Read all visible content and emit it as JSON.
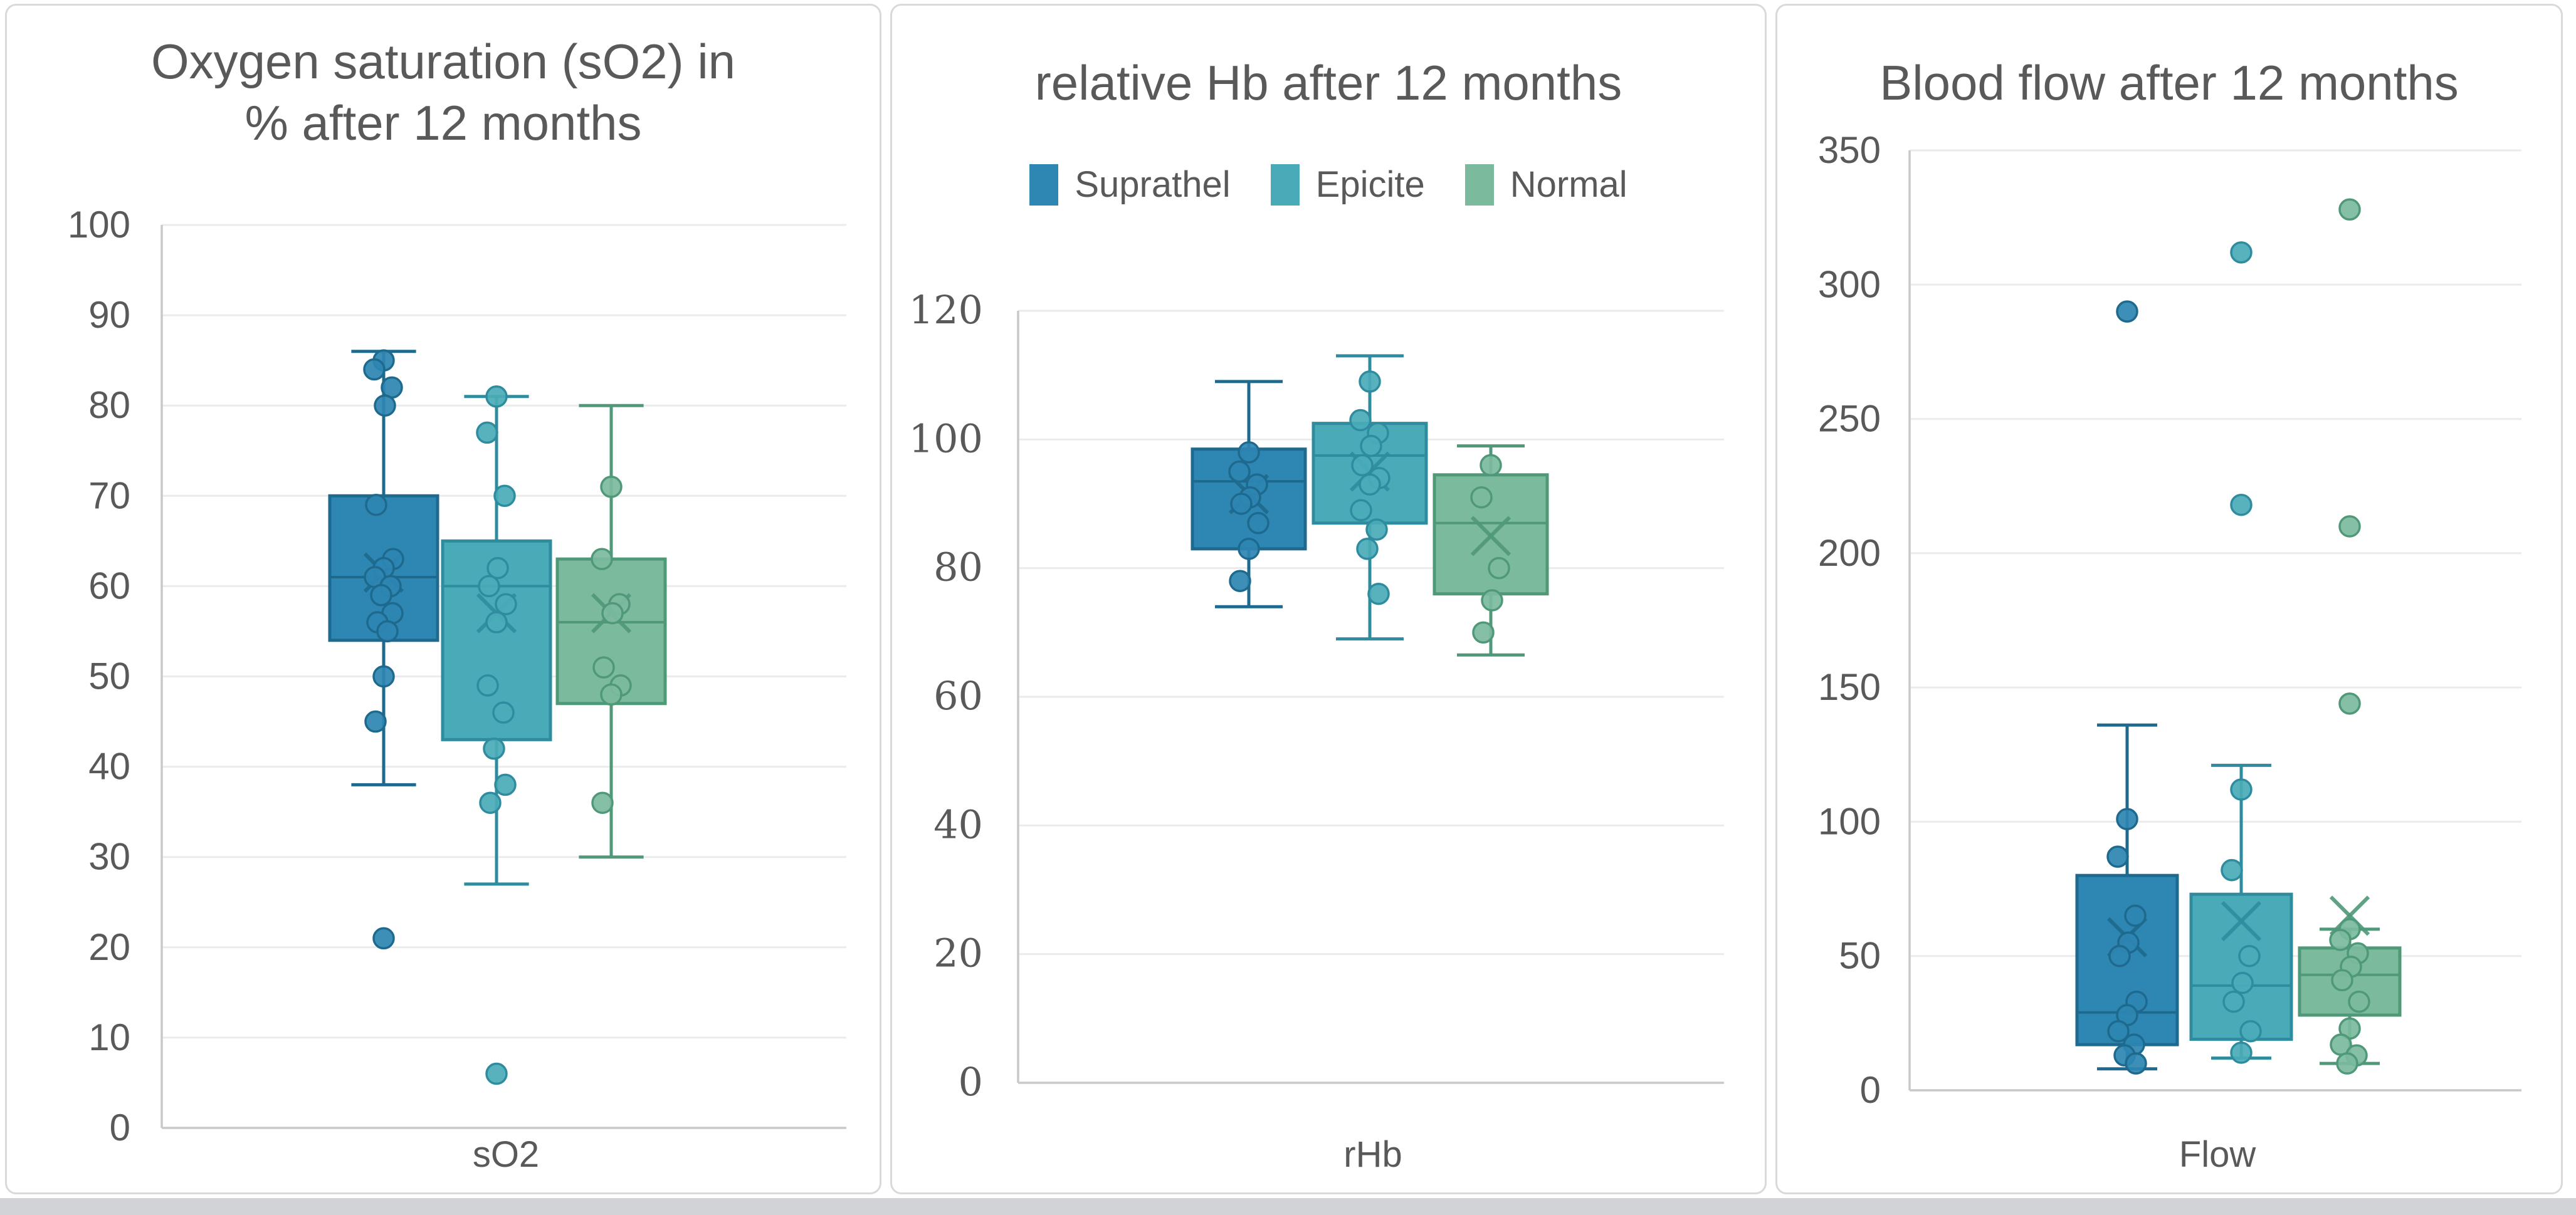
{
  "colors": {
    "panel_border": "#d9d9d9",
    "grid_line": "#ebebeb",
    "axis_line": "#c9c9c9",
    "text": "#595959",
    "background": "#ffffff",
    "window_strip": "#d2d3d6",
    "suprathel_fill": "#2E86B2",
    "suprathel_stroke": "#1E6A8E",
    "epicite_fill": "#4AABB8",
    "epicite_stroke": "#2E8C9E",
    "normal_fill": "#7BBA9D",
    "normal_stroke": "#4F9878"
  },
  "legend": {
    "items": [
      {
        "label": "Suprathel",
        "color": "#2E86B2"
      },
      {
        "label": "Epicite",
        "color": "#4AABB8"
      },
      {
        "label": "Normal",
        "color": "#7BBA9D"
      }
    ]
  },
  "chart_data": [
    {
      "type": "box",
      "title": "Oxygen saturation (sO2) in % after 12 months",
      "title_lines": [
        "Oxygen saturation (sO2) in",
        "% after 12 months"
      ],
      "xlabel": "sO2",
      "ylabel": "",
      "ylim": [
        0,
        100
      ],
      "ytick_step": 10,
      "yticks": [
        0,
        10,
        20,
        30,
        40,
        50,
        60,
        70,
        80,
        90,
        100
      ],
      "grid": true,
      "legend_position": "none",
      "categories": [
        "sO2"
      ],
      "series": [
        {
          "name": "Suprathel",
          "fill": "#2E86B2",
          "stroke": "#1E6A8E",
          "box": {
            "whisker_low": 38,
            "q1": 54,
            "median": 61,
            "q3": 70,
            "whisker_high": 86,
            "mean": 61.5
          },
          "points": [
            85,
            84,
            82,
            80,
            69,
            63,
            62,
            61,
            60,
            59,
            57,
            56,
            55,
            50,
            45
          ],
          "outliers": [
            21
          ]
        },
        {
          "name": "Epicite",
          "fill": "#4AABB8",
          "stroke": "#2E8C9E",
          "box": {
            "whisker_low": 27,
            "q1": 43,
            "median": 60,
            "q3": 65,
            "whisker_high": 81,
            "mean": 57
          },
          "points": [
            81,
            77,
            70,
            62,
            60,
            58,
            56,
            49,
            46,
            42,
            38,
            36
          ],
          "outliers": [
            6
          ]
        },
        {
          "name": "Normal",
          "fill": "#7BBA9D",
          "stroke": "#4F9878",
          "box": {
            "whisker_low": 30,
            "q1": 47,
            "median": 56,
            "q3": 63,
            "whisker_high": 80,
            "mean": 57
          },
          "points": [
            71,
            63,
            58,
            57,
            51,
            49,
            48,
            36
          ],
          "outliers": []
        }
      ]
    },
    {
      "type": "box",
      "title": "relative Hb after 12 months",
      "title_lines": [
        "relative Hb after 12 months"
      ],
      "xlabel": "rHb",
      "ylabel": "",
      "ylim": [
        0,
        120
      ],
      "ytick_step": 20,
      "yticks": [
        0,
        20,
        40,
        60,
        80,
        100,
        120
      ],
      "grid": true,
      "legend_position": "top",
      "categories": [
        "rHb"
      ],
      "series": [
        {
          "name": "Suprathel",
          "fill": "#2E86B2",
          "stroke": "#1E6A8E",
          "box": {
            "whisker_low": 74,
            "q1": 83,
            "median": 93.5,
            "q3": 98.5,
            "whisker_high": 109,
            "mean": 91.5
          },
          "points": [
            98,
            95,
            93,
            91,
            90,
            87,
            83,
            78
          ],
          "outliers": []
        },
        {
          "name": "Epicite",
          "fill": "#4AABB8",
          "stroke": "#2E8C9E",
          "box": {
            "whisker_low": 69,
            "q1": 87,
            "median": 97.5,
            "q3": 102.5,
            "whisker_high": 113,
            "mean": 95
          },
          "points": [
            109,
            103,
            101,
            99,
            96,
            94,
            93,
            89,
            86,
            83,
            76
          ],
          "outliers": []
        },
        {
          "name": "Normal",
          "fill": "#7BBA9D",
          "stroke": "#4F9878",
          "box": {
            "whisker_low": 66.5,
            "q1": 76,
            "median": 87,
            "q3": 94.5,
            "whisker_high": 99,
            "mean": 85
          },
          "points": [
            96,
            91,
            80,
            75,
            70
          ],
          "outliers": []
        }
      ]
    },
    {
      "type": "box",
      "title": "Blood flow after 12 months",
      "title_lines": [
        "Blood flow after 12 months"
      ],
      "xlabel": "Flow",
      "ylabel": "",
      "ylim": [
        0,
        350
      ],
      "ytick_step": 50,
      "yticks": [
        0,
        50,
        100,
        150,
        200,
        250,
        300,
        350
      ],
      "grid": true,
      "legend_position": "none",
      "categories": [
        "Flow"
      ],
      "series": [
        {
          "name": "Suprathel",
          "fill": "#2E86B2",
          "stroke": "#1E6A8E",
          "box": {
            "whisker_low": 8,
            "q1": 17,
            "median": 29,
            "q3": 80,
            "whisker_high": 136,
            "mean": 57
          },
          "points": [
            101,
            87,
            65,
            55,
            50,
            33,
            28,
            22,
            17,
            13,
            10
          ],
          "outliers": [
            290
          ]
        },
        {
          "name": "Epicite",
          "fill": "#4AABB8",
          "stroke": "#2E8C9E",
          "box": {
            "whisker_low": 12,
            "q1": 19,
            "median": 39,
            "q3": 73,
            "whisker_high": 121,
            "mean": 63
          },
          "points": [
            112,
            82,
            50,
            40,
            33,
            22,
            14
          ],
          "outliers": [
            312,
            218
          ]
        },
        {
          "name": "Normal",
          "fill": "#7BBA9D",
          "stroke": "#4F9878",
          "box": {
            "whisker_low": 10,
            "q1": 28,
            "median": 43,
            "q3": 53,
            "whisker_high": 60,
            "mean": 65
          },
          "points": [
            60,
            56,
            51,
            46,
            41,
            33,
            23,
            17,
            13,
            10
          ],
          "outliers": [
            328,
            210,
            144
          ]
        }
      ]
    }
  ]
}
